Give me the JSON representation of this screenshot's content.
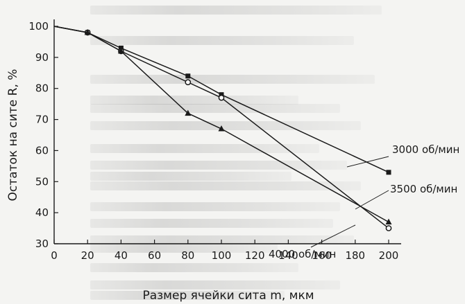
{
  "chart_data": {
    "type": "line",
    "xlabel": "Размер ячейки сита m, мкм",
    "ylabel": "Остаток на сите R, %",
    "x_ticks": [
      0,
      20,
      40,
      60,
      80,
      100,
      120,
      140,
      160,
      180,
      200
    ],
    "y_ticks": [
      30,
      40,
      50,
      60,
      70,
      80,
      90,
      100
    ],
    "xlim": [
      0,
      200
    ],
    "ylim": [
      30,
      100
    ],
    "grid": false,
    "series": [
      {
        "name": "3000 об/мин",
        "marker": "square",
        "x": [
          0,
          20,
          40,
          80,
          100,
          200
        ],
        "y": [
          100,
          98,
          93,
          84,
          78,
          53
        ]
      },
      {
        "name": "3500 об/мин",
        "marker": "circle",
        "x": [
          0,
          20,
          40,
          80,
          100,
          200
        ],
        "y": [
          100,
          98,
          92,
          82,
          77,
          35
        ]
      },
      {
        "name": "4000 об/мин",
        "marker": "triangle",
        "x": [
          0,
          20,
          40,
          80,
          100,
          200
        ],
        "y": [
          100,
          98,
          92,
          72,
          67,
          37
        ]
      }
    ],
    "annotations": [
      {
        "text": "3000 об/мин",
        "series": 0
      },
      {
        "text": "3500 об/мин",
        "series": 1
      },
      {
        "text": "4000 об/мин",
        "series": 2
      }
    ]
  }
}
